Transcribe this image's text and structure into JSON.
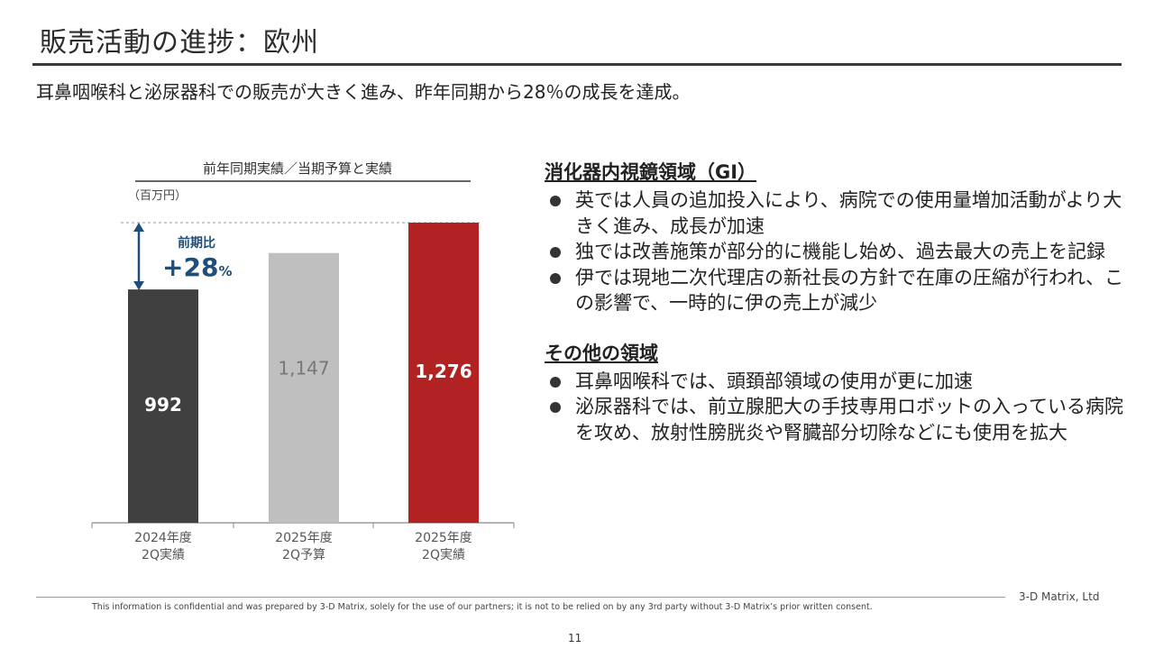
{
  "slide": {
    "title": "販売活動の進捗：欧州",
    "subtitle": "耳鼻咽喉科と泌尿器科での販売が大きく進み、昨年同期から28％の成長を達成。",
    "page_number": "11"
  },
  "chart_data": {
    "type": "bar",
    "title": "前年同期実績／当期予算と実績",
    "unit_label": "（百万円）",
    "categories": [
      [
        "2024年度",
        "2Q実績"
      ],
      [
        "2025年度",
        "2Q予算"
      ],
      [
        "2025年度",
        "2Q実績"
      ]
    ],
    "values": [
      992,
      1147,
      1276
    ],
    "value_labels": [
      "992",
      "1,147",
      "1,276"
    ],
    "colors": [
      "#404040",
      "#bfbfbf",
      "#b22222"
    ],
    "label_colors": [
      "#ffffff",
      "#777777",
      "#ffffff"
    ],
    "growth": {
      "label": "前期比",
      "value": "+28",
      "unit": "%",
      "color": "#1f4e79"
    },
    "ylim": [
      0,
      1276
    ]
  },
  "sections": [
    {
      "heading": "消化器内視鏡領域（GI）",
      "bullets": [
        "英では人員の追加投入により、病院での使用量増加活動がより大きく進み、成長が加速",
        "独では改善施策が部分的に機能し始め、過去最大の売上を記録",
        "伊では現地二次代理店の新社長の方針で在庫の圧縮が行われ、この影響で、一時的に伊の売上が減少"
      ]
    },
    {
      "heading": "その他の領域",
      "bullets": [
        "耳鼻咽喉科では、頭頚部領域の使用が更に加速",
        "泌尿器科では、前立腺肥大の手技専用ロボットの入っている病院を攻め、放射性膀胱炎や腎臓部分切除などにも使用を拡大"
      ]
    }
  ],
  "footer": {
    "company": "3-D Matrix, Ltd",
    "disclaimer": "This information is confidential and was prepared by 3-D Matrix, solely for the use of our partners; it is not to be relied on by any 3rd party without 3-D Matrix’s prior written consent."
  }
}
